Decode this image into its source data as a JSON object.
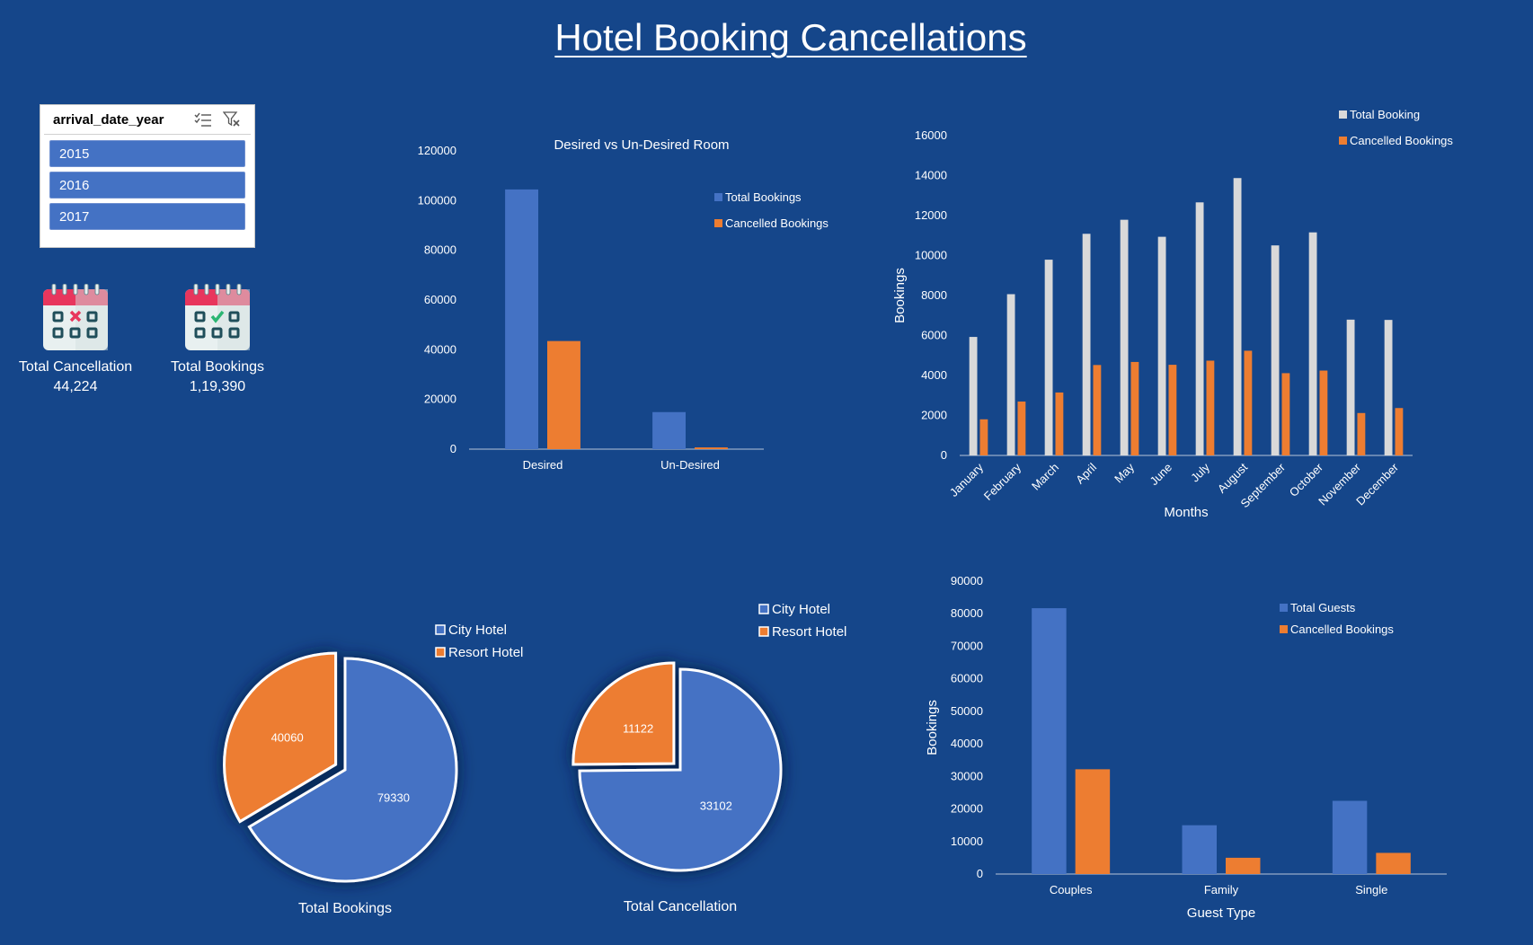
{
  "dashboard": {
    "title": "Hotel Booking Cancellations"
  },
  "slicer": {
    "title": "arrival_date_year",
    "items": [
      "2015",
      "2016",
      "2017"
    ],
    "icons": [
      "multi-select-icon",
      "clear-filter-icon"
    ]
  },
  "kpis": [
    {
      "label": "Total Cancellation",
      "value": "44,224",
      "icon": "calendar-cancel-icon"
    },
    {
      "label": "Total Bookings",
      "value": "1,19,390",
      "icon": "calendar-check-icon"
    }
  ],
  "colors": {
    "background": "#15468a",
    "blue": "#4472c4",
    "orange": "#ed7d31",
    "gray": "#d9d9d9"
  },
  "chart_data": [
    {
      "id": "room",
      "type": "bar",
      "title": "Desired vs Un-Desired Room",
      "categories": [
        "Desired",
        "Un-Desired"
      ],
      "series": [
        {
          "name": "Total Bookings",
          "values": [
            104500,
            14900
          ],
          "color": "#4472c4"
        },
        {
          "name": "Cancelled Bookings",
          "values": [
            43500,
            700
          ],
          "color": "#ed7d31"
        }
      ],
      "ylim": [
        0,
        120000
      ],
      "yticks": [
        0,
        20000,
        40000,
        60000,
        80000,
        100000,
        120000
      ],
      "xlabel": "",
      "ylabel": "",
      "legend": "right"
    },
    {
      "id": "months",
      "type": "bar",
      "title": "",
      "categories": [
        "January",
        "February",
        "March",
        "April",
        "May",
        "June",
        "July",
        "August",
        "September",
        "October",
        "November",
        "December"
      ],
      "series": [
        {
          "name": "Total Booking",
          "values": [
            5929,
            8068,
            9794,
            11089,
            11791,
            10939,
            12661,
            13877,
            10508,
            11160,
            6794,
            6780
          ],
          "color": "#d9d9d9"
        },
        {
          "name": "Cancelled Bookings",
          "values": [
            1807,
            2696,
            3149,
            4524,
            4677,
            4535,
            4742,
            5239,
            4116,
            4246,
            2122,
            2371
          ],
          "color": "#ed7d31"
        }
      ],
      "ylim": [
        0,
        16000
      ],
      "yticks": [
        0,
        2000,
        4000,
        6000,
        8000,
        10000,
        12000,
        14000,
        16000
      ],
      "xlabel": "Months",
      "ylabel": "Bookings",
      "legend": "top-right"
    },
    {
      "id": "pie-bookings",
      "type": "pie",
      "title": "Total Bookings",
      "labels": [
        "City Hotel",
        "Resort Hotel"
      ],
      "values": [
        79330,
        40060
      ],
      "colors": [
        "#4472c4",
        "#ed7d31"
      ],
      "legend": "top-right"
    },
    {
      "id": "pie-cancel",
      "type": "pie",
      "title": "Total Cancellation",
      "labels": [
        "City Hotel",
        "Resort Hotel"
      ],
      "values": [
        33102,
        11122
      ],
      "colors": [
        "#4472c4",
        "#ed7d31"
      ],
      "legend": "top-right"
    },
    {
      "id": "guests",
      "type": "bar",
      "title": "",
      "categories": [
        "Couples",
        "Family",
        "Single"
      ],
      "series": [
        {
          "name": "Total Guests",
          "values": [
            81700,
            15000,
            22500
          ],
          "color": "#4472c4"
        },
        {
          "name": "Cancelled Bookings",
          "values": [
            32200,
            5000,
            6500
          ],
          "color": "#ed7d31"
        }
      ],
      "ylim": [
        0,
        90000
      ],
      "yticks": [
        0,
        10000,
        20000,
        30000,
        40000,
        50000,
        60000,
        70000,
        80000,
        90000
      ],
      "xlabel": "Guest Type",
      "ylabel": "Bookings",
      "legend": "top-right"
    }
  ]
}
